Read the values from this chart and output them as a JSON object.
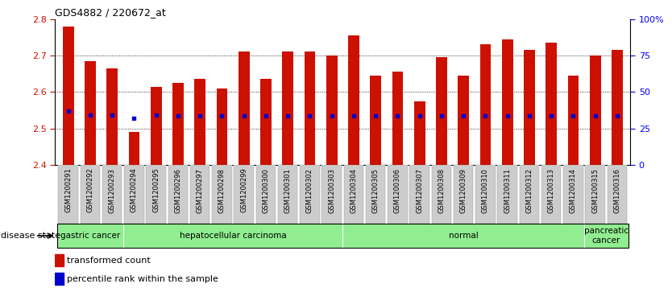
{
  "title": "GDS4882 / 220672_at",
  "samples": [
    "GSM1200291",
    "GSM1200292",
    "GSM1200293",
    "GSM1200294",
    "GSM1200295",
    "GSM1200296",
    "GSM1200297",
    "GSM1200298",
    "GSM1200299",
    "GSM1200300",
    "GSM1200301",
    "GSM1200302",
    "GSM1200303",
    "GSM1200304",
    "GSM1200305",
    "GSM1200306",
    "GSM1200307",
    "GSM1200308",
    "GSM1200309",
    "GSM1200310",
    "GSM1200311",
    "GSM1200312",
    "GSM1200313",
    "GSM1200314",
    "GSM1200315",
    "GSM1200316"
  ],
  "bar_values": [
    2.78,
    2.685,
    2.665,
    2.49,
    2.615,
    2.625,
    2.635,
    2.61,
    2.71,
    2.635,
    2.71,
    2.71,
    2.7,
    2.755,
    2.645,
    2.655,
    2.575,
    2.695,
    2.645,
    2.73,
    2.745,
    2.715,
    2.735,
    2.645,
    2.7,
    2.715
  ],
  "percentile_values": [
    2.548,
    2.537,
    2.537,
    2.527,
    2.536,
    2.535,
    2.534,
    2.534,
    2.534,
    2.534,
    2.534,
    2.534,
    2.534,
    2.534,
    2.534,
    2.534,
    2.534,
    2.534,
    2.534,
    2.534,
    2.534,
    2.534,
    2.534,
    2.534,
    2.535,
    2.534
  ],
  "bar_color": "#CC1100",
  "dot_color": "#0000CC",
  "ymin": 2.4,
  "ymax": 2.8,
  "yticks_left": [
    2.4,
    2.5,
    2.6,
    2.7,
    2.8
  ],
  "right_pct": [
    0,
    25,
    50,
    75,
    100
  ],
  "right_labels": [
    "0",
    "25",
    "50",
    "75",
    "100%"
  ],
  "groups": [
    {
      "label": "gastric cancer",
      "start": 0,
      "end": 3
    },
    {
      "label": "hepatocellular carcinoma",
      "start": 3,
      "end": 13
    },
    {
      "label": "normal",
      "start": 13,
      "end": 24
    },
    {
      "label": "pancreatic\ncancer",
      "start": 24,
      "end": 26
    }
  ],
  "group_color": "#90EE90",
  "tick_bg": "#CCCCCC",
  "legend": [
    {
      "color": "#CC1100",
      "label": "transformed count"
    },
    {
      "color": "#0000CC",
      "label": "percentile rank within the sample"
    }
  ],
  "fig_width": 8.34,
  "fig_height": 3.63
}
